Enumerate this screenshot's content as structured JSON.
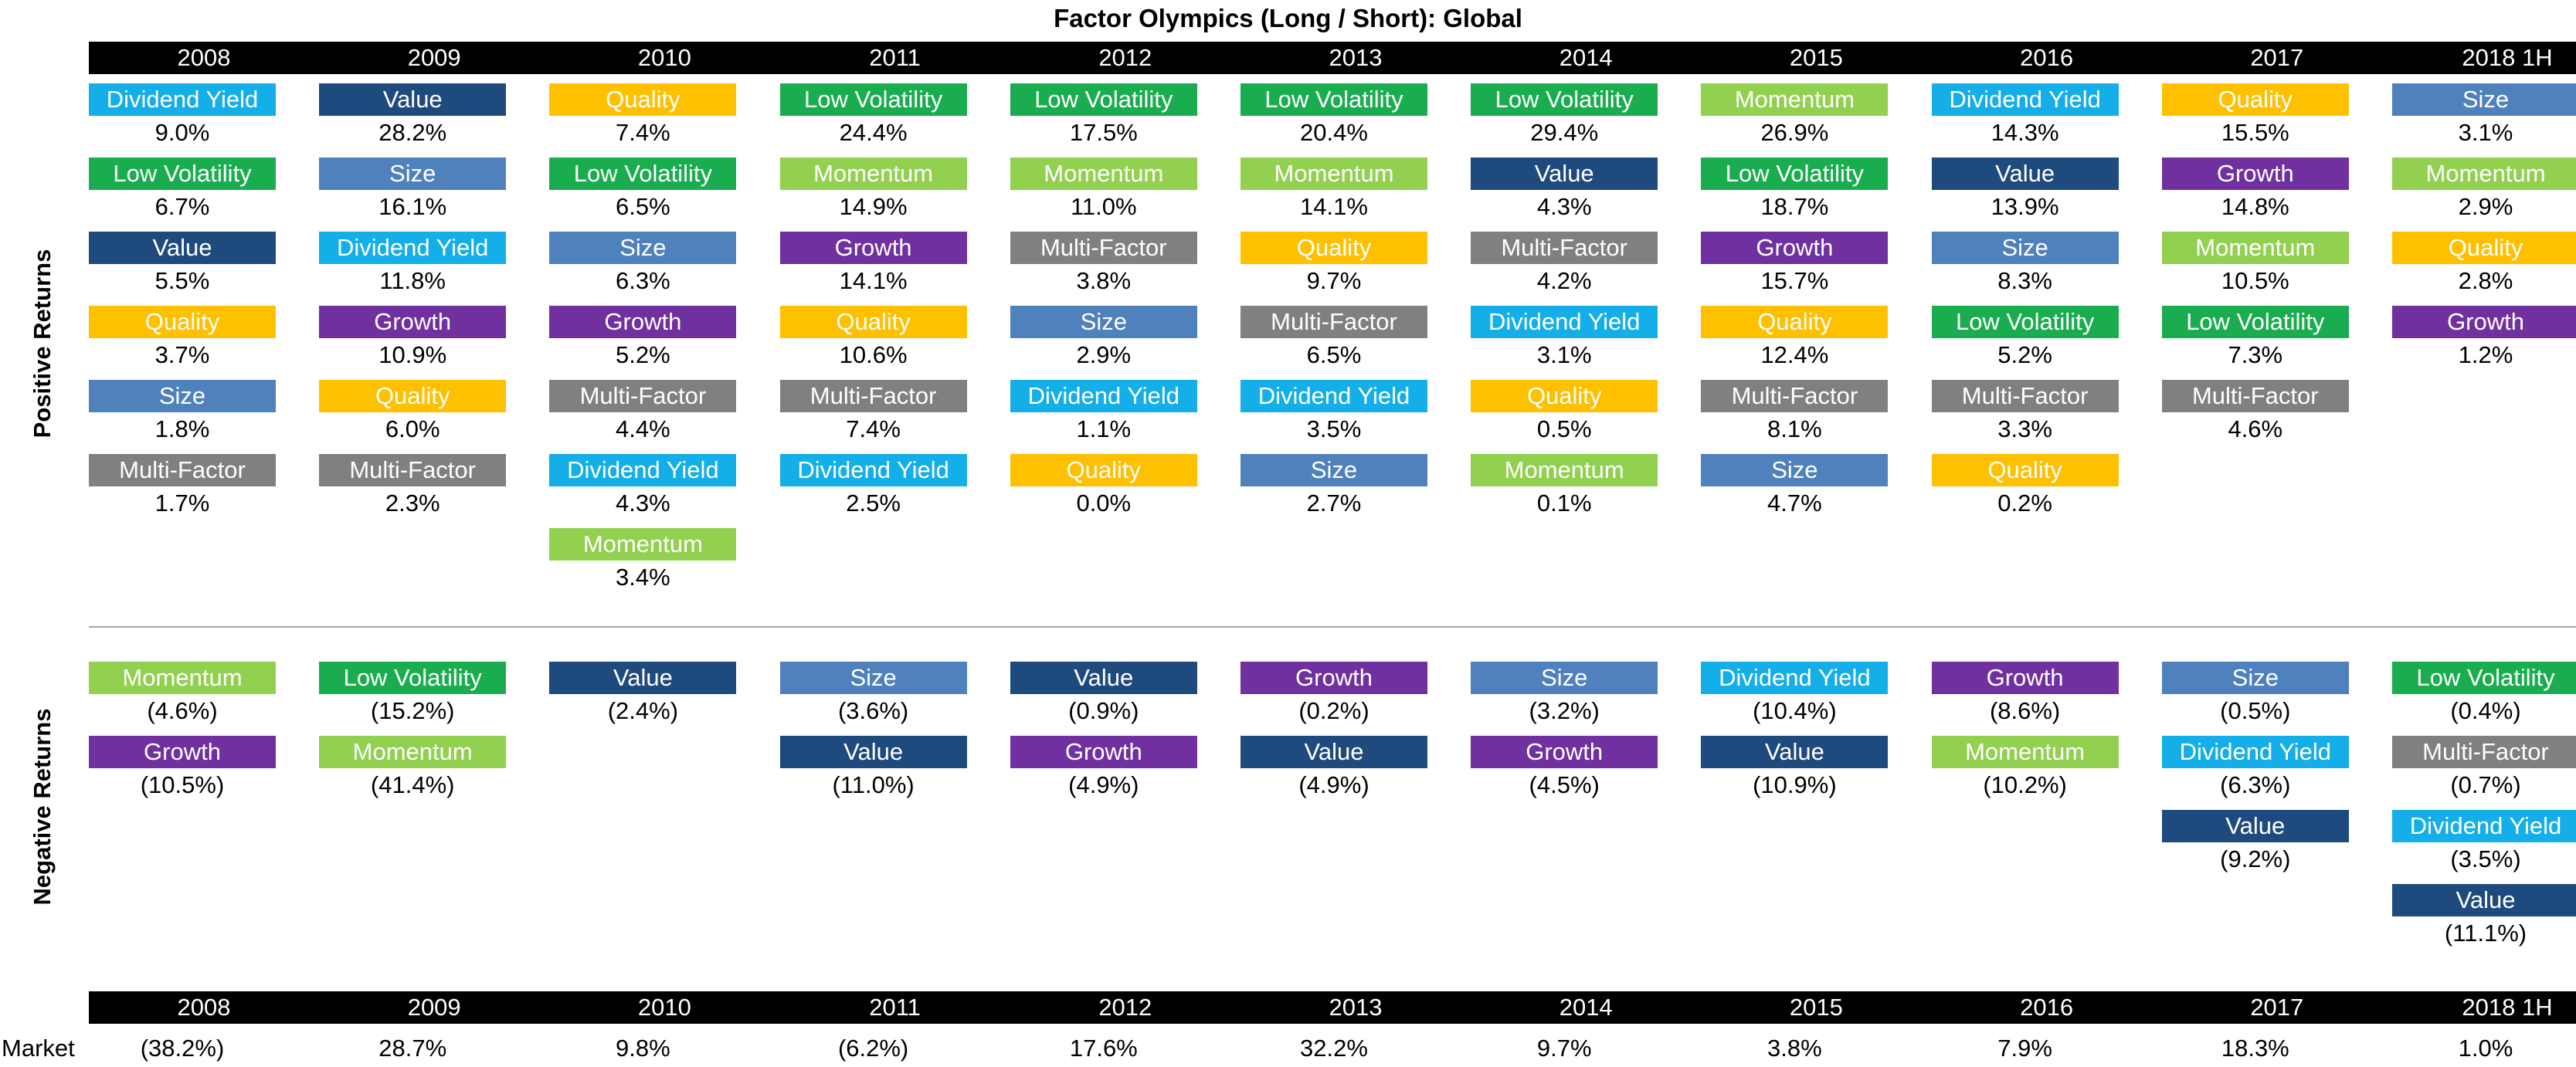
{
  "chart_data": {
    "type": "table",
    "title": "Factor Olympics (Long / Short): Global",
    "years": [
      "2008",
      "2009",
      "2010",
      "2011",
      "2012",
      "2013",
      "2014",
      "2015",
      "2016",
      "2017",
      "2018 1H"
    ],
    "section_labels": {
      "positive": "Positive Returns",
      "negative": "Negative Returns"
    },
    "market_label": "Market",
    "factor_colors": {
      "Dividend Yield": "#14aee8",
      "Low Volatility": "#1aad4f",
      "Value": "#1f4a7e",
      "Quality": "#ffc000",
      "Size": "#4f81bd",
      "Multi-Factor": "#808080",
      "Growth": "#7030a0",
      "Momentum": "#92d050"
    },
    "positive": [
      [
        {
          "f": "Dividend Yield",
          "v": "9.0%"
        },
        {
          "f": "Low Volatility",
          "v": "6.7%"
        },
        {
          "f": "Value",
          "v": "5.5%"
        },
        {
          "f": "Quality",
          "v": "3.7%"
        },
        {
          "f": "Size",
          "v": "1.8%"
        },
        {
          "f": "Multi-Factor",
          "v": "1.7%"
        }
      ],
      [
        {
          "f": "Value",
          "v": "28.2%"
        },
        {
          "f": "Size",
          "v": "16.1%"
        },
        {
          "f": "Dividend Yield",
          "v": "11.8%"
        },
        {
          "f": "Growth",
          "v": "10.9%"
        },
        {
          "f": "Quality",
          "v": "6.0%"
        },
        {
          "f": "Multi-Factor",
          "v": "2.3%"
        }
      ],
      [
        {
          "f": "Quality",
          "v": "7.4%"
        },
        {
          "f": "Low Volatility",
          "v": "6.5%"
        },
        {
          "f": "Size",
          "v": "6.3%"
        },
        {
          "f": "Growth",
          "v": "5.2%"
        },
        {
          "f": "Multi-Factor",
          "v": "4.4%"
        },
        {
          "f": "Dividend Yield",
          "v": "4.3%"
        },
        {
          "f": "Momentum",
          "v": "3.4%"
        }
      ],
      [
        {
          "f": "Low Volatility",
          "v": "24.4%"
        },
        {
          "f": "Momentum",
          "v": "14.9%"
        },
        {
          "f": "Growth",
          "v": "14.1%"
        },
        {
          "f": "Quality",
          "v": "10.6%"
        },
        {
          "f": "Multi-Factor",
          "v": "7.4%"
        },
        {
          "f": "Dividend Yield",
          "v": "2.5%"
        }
      ],
      [
        {
          "f": "Low Volatility",
          "v": "17.5%"
        },
        {
          "f": "Momentum",
          "v": "11.0%"
        },
        {
          "f": "Multi-Factor",
          "v": "3.8%"
        },
        {
          "f": "Size",
          "v": "2.9%"
        },
        {
          "f": "Dividend Yield",
          "v": "1.1%"
        },
        {
          "f": "Quality",
          "v": "0.0%"
        }
      ],
      [
        {
          "f": "Low Volatility",
          "v": "20.4%"
        },
        {
          "f": "Momentum",
          "v": "14.1%"
        },
        {
          "f": "Quality",
          "v": "9.7%"
        },
        {
          "f": "Multi-Factor",
          "v": "6.5%"
        },
        {
          "f": "Dividend Yield",
          "v": "3.5%"
        },
        {
          "f": "Size",
          "v": "2.7%"
        }
      ],
      [
        {
          "f": "Low Volatility",
          "v": "29.4%"
        },
        {
          "f": "Value",
          "v": "4.3%"
        },
        {
          "f": "Multi-Factor",
          "v": "4.2%"
        },
        {
          "f": "Dividend Yield",
          "v": "3.1%"
        },
        {
          "f": "Quality",
          "v": "0.5%"
        },
        {
          "f": "Momentum",
          "v": "0.1%"
        }
      ],
      [
        {
          "f": "Momentum",
          "v": "26.9%"
        },
        {
          "f": "Low Volatility",
          "v": "18.7%"
        },
        {
          "f": "Growth",
          "v": "15.7%"
        },
        {
          "f": "Quality",
          "v": "12.4%"
        },
        {
          "f": "Multi-Factor",
          "v": "8.1%"
        },
        {
          "f": "Size",
          "v": "4.7%"
        }
      ],
      [
        {
          "f": "Dividend Yield",
          "v": "14.3%"
        },
        {
          "f": "Value",
          "v": "13.9%"
        },
        {
          "f": "Size",
          "v": "8.3%"
        },
        {
          "f": "Low Volatility",
          "v": "5.2%"
        },
        {
          "f": "Multi-Factor",
          "v": "3.3%"
        },
        {
          "f": "Quality",
          "v": "0.2%"
        }
      ],
      [
        {
          "f": "Quality",
          "v": "15.5%"
        },
        {
          "f": "Growth",
          "v": "14.8%"
        },
        {
          "f": "Momentum",
          "v": "10.5%"
        },
        {
          "f": "Low Volatility",
          "v": "7.3%"
        },
        {
          "f": "Multi-Factor",
          "v": "4.6%"
        }
      ],
      [
        {
          "f": "Size",
          "v": "3.1%"
        },
        {
          "f": "Momentum",
          "v": "2.9%"
        },
        {
          "f": "Quality",
          "v": "2.8%"
        },
        {
          "f": "Growth",
          "v": "1.2%"
        }
      ]
    ],
    "negative": [
      [
        {
          "f": "Momentum",
          "v": "(4.6%)"
        },
        {
          "f": "Growth",
          "v": "(10.5%)"
        }
      ],
      [
        {
          "f": "Low Volatility",
          "v": "(15.2%)"
        },
        {
          "f": "Momentum",
          "v": "(41.4%)"
        }
      ],
      [
        {
          "f": "Value",
          "v": "(2.4%)"
        }
      ],
      [
        {
          "f": "Size",
          "v": "(3.6%)"
        },
        {
          "f": "Value",
          "v": "(11.0%)"
        }
      ],
      [
        {
          "f": "Value",
          "v": "(0.9%)"
        },
        {
          "f": "Growth",
          "v": "(4.9%)"
        }
      ],
      [
        {
          "f": "Growth",
          "v": "(0.2%)"
        },
        {
          "f": "Value",
          "v": "(4.9%)"
        }
      ],
      [
        {
          "f": "Size",
          "v": "(3.2%)"
        },
        {
          "f": "Growth",
          "v": "(4.5%)"
        }
      ],
      [
        {
          "f": "Dividend Yield",
          "v": "(10.4%)"
        },
        {
          "f": "Value",
          "v": "(10.9%)"
        }
      ],
      [
        {
          "f": "Growth",
          "v": "(8.6%)"
        },
        {
          "f": "Momentum",
          "v": "(10.2%)"
        }
      ],
      [
        {
          "f": "Size",
          "v": "(0.5%)"
        },
        {
          "f": "Dividend Yield",
          "v": "(6.3%)"
        },
        {
          "f": "Value",
          "v": "(9.2%)"
        }
      ],
      [
        {
          "f": "Low Volatility",
          "v": "(0.4%)"
        },
        {
          "f": "Multi-Factor",
          "v": "(0.7%)"
        },
        {
          "f": "Dividend Yield",
          "v": "(3.5%)"
        },
        {
          "f": "Value",
          "v": "(11.1%)"
        }
      ]
    ],
    "market": [
      "(38.2%)",
      "28.7%",
      "9.8%",
      "(6.2%)",
      "17.6%",
      "32.2%",
      "9.7%",
      "3.8%",
      "7.9%",
      "18.3%",
      "1.0%"
    ]
  }
}
